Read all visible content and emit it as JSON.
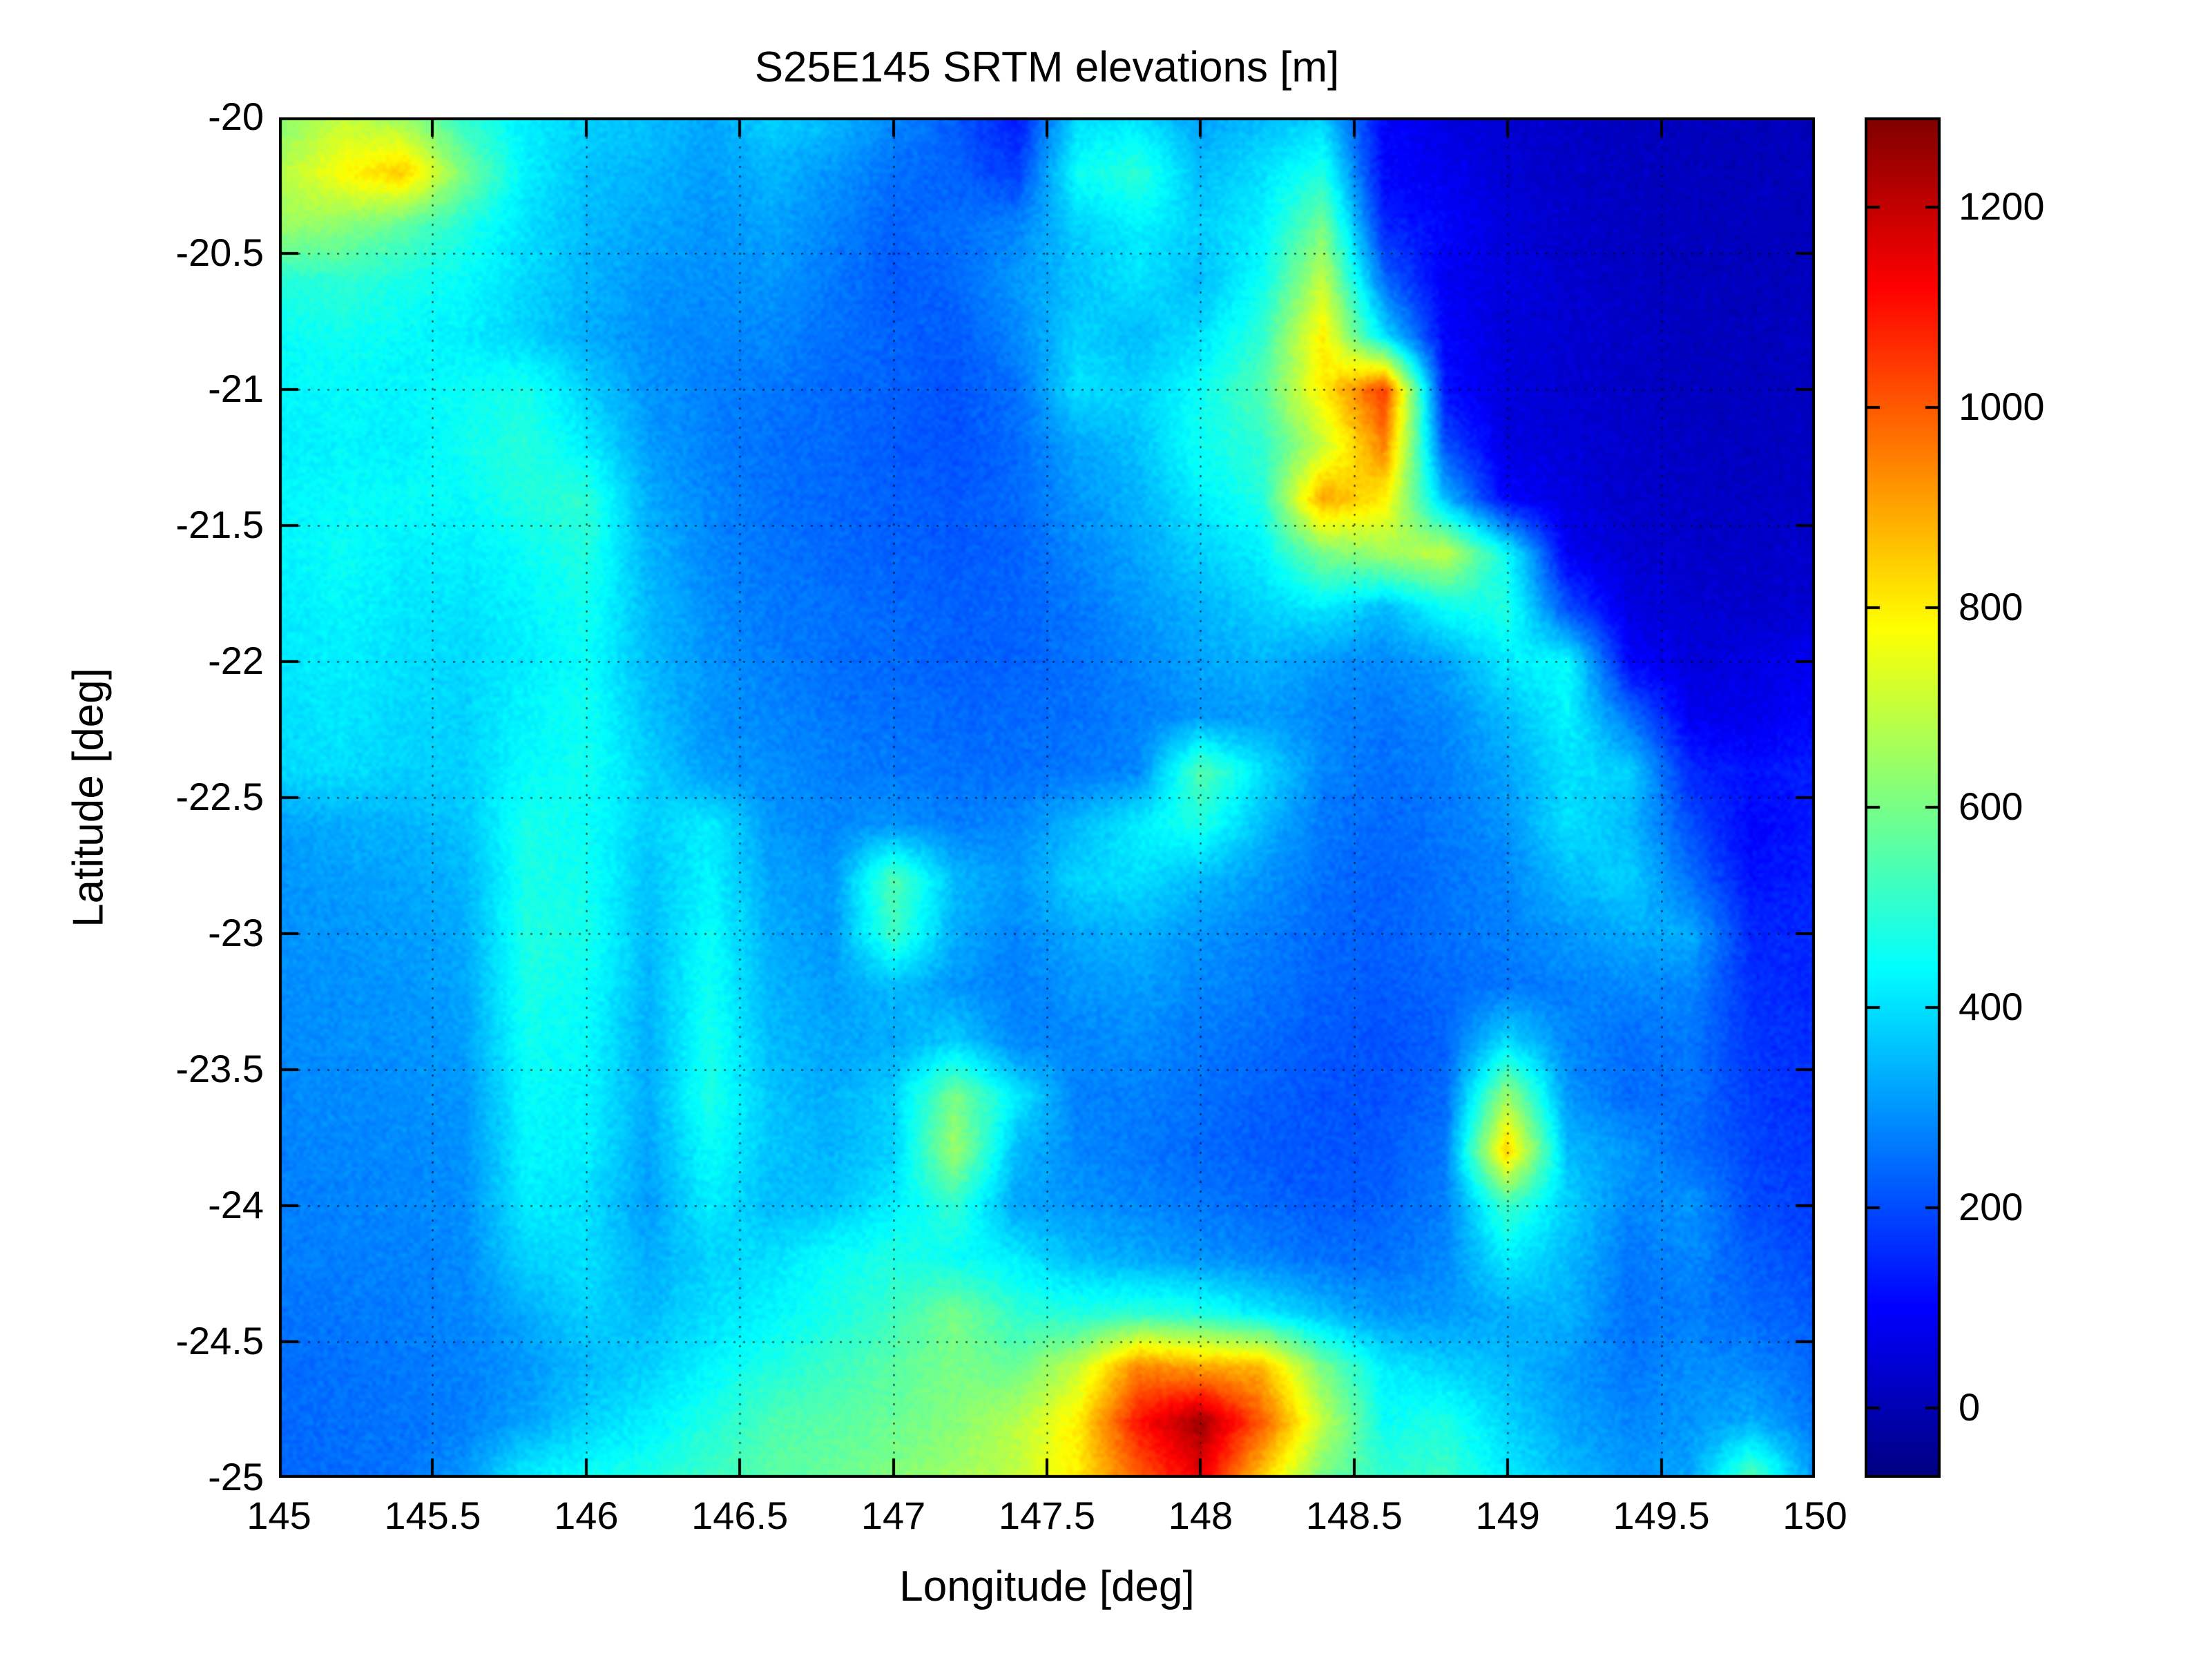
{
  "figure": {
    "background_color": "#ffffff",
    "text_color": "#000000"
  },
  "chart_data": {
    "type": "heatmap",
    "title": "S25E145 SRTM elevations [m]",
    "xlabel": "Longitude [deg]",
    "ylabel": "Latitude [deg]",
    "xlim": [
      145,
      150
    ],
    "ylim": [
      -25,
      -20
    ],
    "xticks": [
      145,
      145.5,
      146,
      146.5,
      147,
      147.5,
      148,
      148.5,
      149,
      149.5,
      150
    ],
    "xtick_labels": [
      "145",
      "145.5",
      "146",
      "146.5",
      "147",
      "147.5",
      "148",
      "148.5",
      "149",
      "149.5",
      "150"
    ],
    "yticks": [
      -20,
      -20.5,
      -21,
      -21.5,
      -22,
      -22.5,
      -23,
      -23.5,
      -24,
      -24.5,
      -25
    ],
    "ytick_labels": [
      "-20",
      "-20.5",
      "-21",
      "-21.5",
      "-22",
      "-22.5",
      "-23",
      "-23.5",
      "-24",
      "-24.5",
      "-25"
    ],
    "grid": true,
    "colormap": "jet",
    "clim": [
      -70,
      1290
    ],
    "colorbar_ticks": [
      0,
      200,
      400,
      600,
      800,
      1000,
      1200
    ],
    "colorbar_tick_labels": [
      "0",
      "200",
      "400",
      "600",
      "800",
      "1000",
      "1200"
    ],
    "lon_start": 145.0,
    "lon_step": 0.2,
    "lat_start": -20.0,
    "lat_step": -0.2,
    "elevations_m": [
      [
        620,
        700,
        650,
        500,
        420,
        380,
        360,
        320,
        380,
        350,
        280,
        220,
        130,
        400,
        400,
        320,
        350,
        380,
        100,
        60,
        40,
        25,
        15,
        12,
        10,
        10
      ],
      [
        680,
        780,
        850,
        600,
        420,
        360,
        340,
        310,
        340,
        300,
        250,
        230,
        180,
        450,
        500,
        350,
        400,
        480,
        100,
        80,
        40,
        25,
        15,
        10,
        10,
        10
      ],
      [
        650,
        620,
        560,
        480,
        400,
        350,
        320,
        300,
        320,
        280,
        230,
        250,
        280,
        380,
        420,
        380,
        420,
        600,
        150,
        100,
        50,
        30,
        18,
        12,
        10,
        10
      ],
      [
        480,
        500,
        470,
        440,
        390,
        340,
        300,
        290,
        300,
        260,
        220,
        240,
        300,
        360,
        400,
        350,
        450,
        700,
        250,
        80,
        60,
        35,
        20,
        12,
        10,
        12
      ],
      [
        450,
        460,
        440,
        420,
        380,
        330,
        290,
        280,
        280,
        250,
        230,
        220,
        280,
        380,
        350,
        400,
        500,
        800,
        400,
        100,
        50,
        40,
        25,
        15,
        12,
        15
      ],
      [
        430,
        440,
        430,
        450,
        470,
        380,
        300,
        270,
        260,
        240,
        230,
        210,
        250,
        400,
        380,
        450,
        550,
        800,
        1050,
        120,
        50,
        40,
        25,
        15,
        12,
        15
      ],
      [
        420,
        430,
        420,
        460,
        490,
        420,
        310,
        270,
        250,
        240,
        220,
        210,
        240,
        320,
        360,
        460,
        500,
        700,
        950,
        200,
        60,
        45,
        30,
        20,
        15,
        20
      ],
      [
        430,
        440,
        450,
        440,
        480,
        500,
        330,
        280,
        250,
        240,
        230,
        220,
        240,
        300,
        340,
        420,
        480,
        900,
        800,
        350,
        100,
        60,
        30,
        25,
        20,
        25
      ],
      [
        430,
        450,
        420,
        420,
        450,
        480,
        340,
        280,
        260,
        240,
        230,
        220,
        230,
        280,
        320,
        380,
        420,
        600,
        650,
        700,
        450,
        80,
        40,
        30,
        25,
        30
      ],
      [
        420,
        430,
        410,
        400,
        430,
        460,
        350,
        290,
        260,
        250,
        240,
        230,
        230,
        260,
        300,
        340,
        380,
        420,
        350,
        450,
        480,
        200,
        60,
        40,
        30,
        40
      ],
      [
        410,
        420,
        400,
        390,
        420,
        450,
        350,
        300,
        270,
        250,
        240,
        230,
        230,
        250,
        280,
        320,
        340,
        300,
        280,
        320,
        420,
        440,
        100,
        50,
        60,
        80
      ],
      [
        400,
        410,
        390,
        380,
        430,
        460,
        360,
        300,
        280,
        260,
        250,
        240,
        240,
        250,
        270,
        300,
        310,
        280,
        260,
        280,
        350,
        430,
        250,
        80,
        70,
        100
      ],
      [
        390,
        400,
        380,
        380,
        440,
        460,
        380,
        310,
        290,
        270,
        260,
        250,
        250,
        260,
        280,
        550,
        400,
        280,
        250,
        270,
        320,
        400,
        380,
        150,
        120,
        140
      ],
      [
        310,
        330,
        340,
        360,
        470,
        450,
        380,
        420,
        300,
        280,
        300,
        270,
        280,
        350,
        420,
        480,
        350,
        260,
        240,
        260,
        300,
        400,
        350,
        200,
        100,
        130
      ],
      [
        300,
        310,
        320,
        340,
        470,
        460,
        360,
        430,
        320,
        300,
        550,
        350,
        300,
        380,
        400,
        350,
        300,
        250,
        230,
        250,
        280,
        350,
        380,
        250,
        120,
        140
      ],
      [
        295,
        300,
        310,
        330,
        480,
        470,
        350,
        450,
        330,
        300,
        520,
        330,
        280,
        330,
        340,
        300,
        270,
        240,
        230,
        250,
        270,
        300,
        330,
        330,
        150,
        150
      ],
      [
        290,
        295,
        300,
        320,
        470,
        450,
        340,
        460,
        340,
        310,
        350,
        300,
        270,
        300,
        310,
        280,
        260,
        230,
        220,
        240,
        260,
        270,
        280,
        280,
        160,
        150
      ],
      [
        285,
        290,
        295,
        310,
        460,
        440,
        330,
        470,
        350,
        320,
        330,
        380,
        280,
        280,
        290,
        260,
        240,
        220,
        210,
        230,
        400,
        280,
        250,
        260,
        170,
        160
      ],
      [
        280,
        285,
        290,
        300,
        440,
        430,
        330,
        480,
        360,
        330,
        380,
        600,
        420,
        270,
        270,
        250,
        230,
        210,
        210,
        240,
        650,
        300,
        240,
        250,
        180,
        160
      ],
      [
        275,
        280,
        285,
        295,
        430,
        420,
        320,
        450,
        360,
        340,
        380,
        650,
        350,
        280,
        260,
        240,
        220,
        210,
        220,
        260,
        850,
        350,
        300,
        240,
        190,
        170
      ],
      [
        270,
        275,
        280,
        290,
        420,
        400,
        310,
        420,
        350,
        360,
        420,
        500,
        320,
        300,
        280,
        260,
        240,
        220,
        230,
        270,
        520,
        380,
        280,
        300,
        200,
        180
      ],
      [
        265,
        270,
        275,
        285,
        380,
        400,
        330,
        380,
        400,
        450,
        480,
        450,
        420,
        350,
        330,
        300,
        280,
        250,
        250,
        280,
        420,
        350,
        260,
        280,
        220,
        200
      ],
      [
        255,
        260,
        268,
        280,
        330,
        380,
        350,
        400,
        430,
        470,
        520,
        600,
        500,
        480,
        500,
        480,
        420,
        350,
        300,
        300,
        330,
        340,
        250,
        270,
        240,
        220
      ],
      [
        245,
        252,
        260,
        272,
        300,
        350,
        380,
        430,
        480,
        520,
        560,
        600,
        580,
        700,
        950,
        900,
        880,
        600,
        420,
        380,
        350,
        300,
        260,
        290,
        280,
        240
      ],
      [
        240,
        248,
        256,
        268,
        320,
        380,
        420,
        480,
        540,
        560,
        580,
        620,
        680,
        800,
        1100,
        1250,
        1000,
        700,
        450,
        480,
        380,
        320,
        280,
        300,
        330,
        260
      ],
      [
        235,
        245,
        255,
        300,
        420,
        450,
        480,
        520,
        560,
        580,
        620,
        650,
        700,
        800,
        1000,
        1150,
        850,
        600,
        500,
        520,
        420,
        350,
        300,
        320,
        550,
        300
      ]
    ]
  }
}
